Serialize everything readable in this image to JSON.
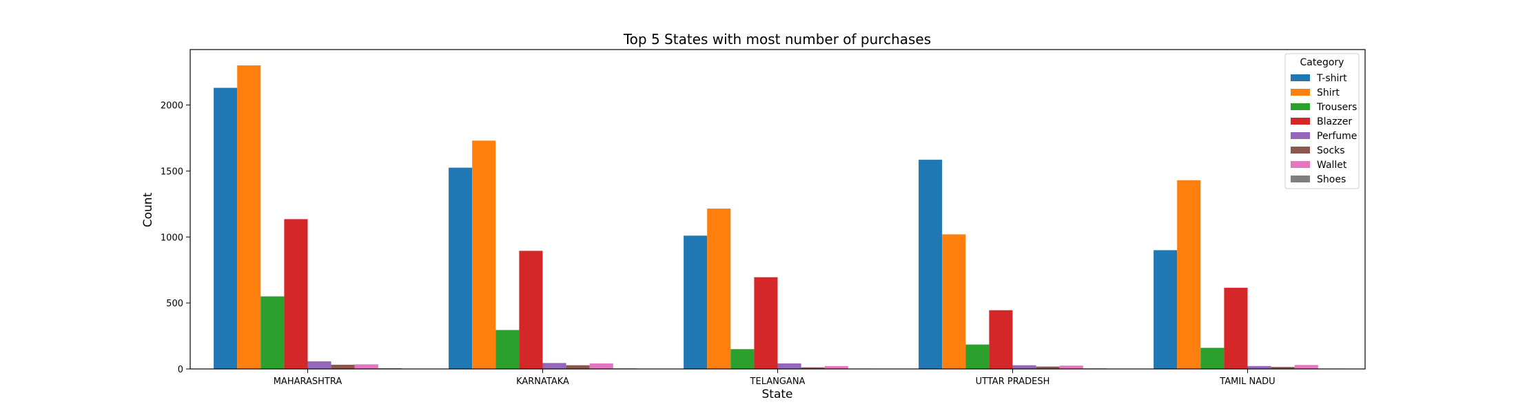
{
  "chart_data": {
    "type": "bar",
    "title": "Top 5 States with most number of purchases",
    "xlabel": "State",
    "ylabel": "Count",
    "categories": [
      "MAHARASHTRA",
      "KARNATAKA",
      "TELANGANA",
      "UTTAR PRADESH",
      "TAMIL NADU"
    ],
    "ylim": [
      0,
      2420
    ],
    "yticks": [
      0,
      500,
      1000,
      1500,
      2000
    ],
    "legend_title": "Category",
    "legend_position": "top-right",
    "grid": false,
    "series": [
      {
        "name": "T-shirt",
        "color": "#1f77b4",
        "values": [
          2130,
          1525,
          1010,
          1585,
          900
        ]
      },
      {
        "name": "Shirt",
        "color": "#ff7f0e",
        "values": [
          2300,
          1730,
          1215,
          1020,
          1430
        ]
      },
      {
        "name": "Trousers",
        "color": "#2ca02c",
        "values": [
          550,
          295,
          150,
          185,
          160
        ]
      },
      {
        "name": "Blazzer",
        "color": "#d62728",
        "values": [
          1135,
          895,
          695,
          445,
          615
        ]
      },
      {
        "name": "Perfume",
        "color": "#9467bd",
        "values": [
          58,
          45,
          42,
          28,
          22
        ]
      },
      {
        "name": "Socks",
        "color": "#8c564b",
        "values": [
          32,
          28,
          12,
          18,
          15
        ]
      },
      {
        "name": "Wallet",
        "color": "#e377c2",
        "values": [
          35,
          42,
          22,
          25,
          30
        ]
      },
      {
        "name": "Shoes",
        "color": "#7f7f7f",
        "values": [
          5,
          4,
          3,
          4,
          3
        ]
      }
    ]
  }
}
